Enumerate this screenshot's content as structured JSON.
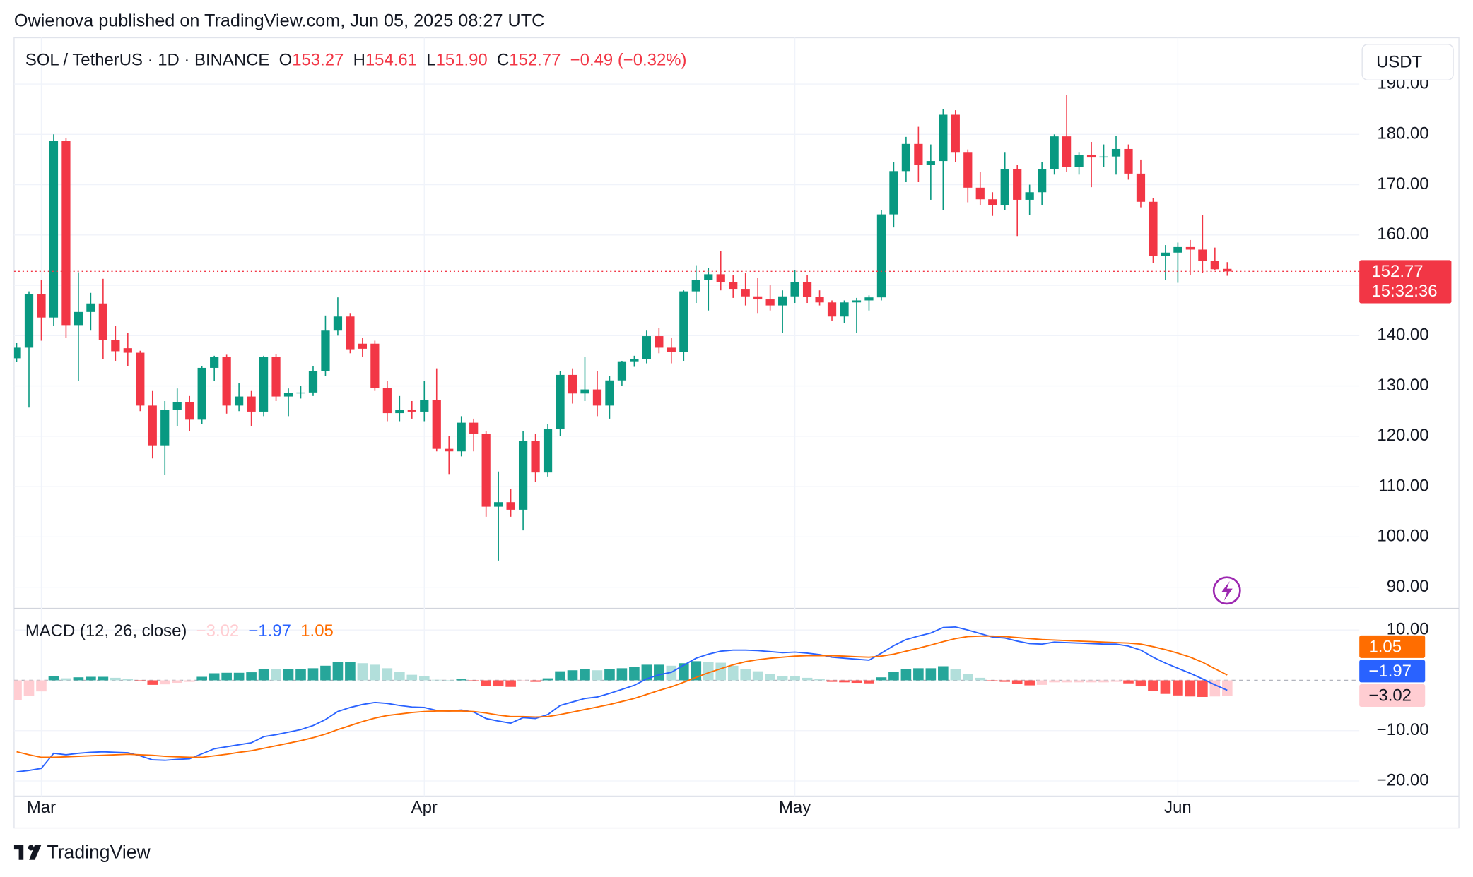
{
  "header": {
    "publisher": "Owienova published on TradingView.com, Jun 05, 2025 08:27 UTC"
  },
  "footer": {
    "brand": "TradingView"
  },
  "chart_data": [
    {
      "type": "candlestick",
      "title": "SOL / TetherUS · 1D · BINANCE",
      "currency": "USDT",
      "ohlc_legend": [
        {
          "key": "O",
          "value": "153.27"
        },
        {
          "key": "H",
          "value": "154.61"
        },
        {
          "key": "L",
          "value": "151.90"
        },
        {
          "key": "C",
          "value": "152.77"
        }
      ],
      "change": "−0.49 (−0.32%)",
      "last_price_label": "152.77",
      "countdown": "15:32:36",
      "up_color": "#089981",
      "down_color": "#f23645",
      "grid": true,
      "ylim": [
        85.8,
        199.2
      ],
      "yticks": [
        {
          "value": 90,
          "label": "90.00"
        },
        {
          "value": 100,
          "label": "100.00"
        },
        {
          "value": 110,
          "label": "110.00"
        },
        {
          "value": 120,
          "label": "120.00"
        },
        {
          "value": 130,
          "label": "130.00"
        },
        {
          "value": 140,
          "label": "140.00"
        },
        {
          "value": 150,
          "label": "150.00"
        },
        {
          "value": 160,
          "label": "160.00"
        },
        {
          "value": 170,
          "label": "170.00"
        },
        {
          "value": 180,
          "label": "180.00"
        },
        {
          "value": 190,
          "label": "190.00"
        }
      ],
      "categories": [
        null,
        null,
        "Mar",
        null,
        null,
        null,
        null,
        null,
        null,
        null,
        null,
        null,
        null,
        null,
        null,
        null,
        null,
        null,
        null,
        null,
        null,
        null,
        null,
        null,
        null,
        null,
        null,
        null,
        null,
        null,
        null,
        null,
        null,
        "Apr",
        null,
        null,
        null,
        null,
        null,
        null,
        null,
        null,
        null,
        null,
        null,
        null,
        null,
        null,
        null,
        null,
        null,
        null,
        null,
        null,
        null,
        null,
        null,
        null,
        null,
        null,
        null,
        null,
        null,
        "May",
        null,
        null,
        null,
        null,
        null,
        null,
        null,
        null,
        null,
        null,
        null,
        null,
        null,
        null,
        null,
        null,
        null,
        null,
        null,
        null,
        null,
        null,
        null,
        null,
        null,
        null,
        null,
        null,
        null,
        null,
        "Jun",
        null,
        null,
        null,
        null
      ],
      "open": [
        135.5,
        137.6,
        148.3,
        143.6,
        178.7,
        142.1,
        144.7,
        146.4,
        139.1,
        137.5,
        136.6,
        126.1,
        118.2,
        125.3,
        126.8,
        123.3,
        133.6,
        135.8,
        126.1,
        127.9,
        124.9,
        135.8,
        127.9,
        128.6,
        128.7,
        133.0,
        141.0,
        143.8,
        138.4,
        138.4,
        129.6,
        124.6,
        125.3,
        124.9,
        127.2,
        117.5,
        117.0,
        122.7,
        120.5,
        106.0,
        106.9,
        105.4,
        119.0,
        112.8,
        121.4,
        132.2,
        128.5,
        129.3,
        126.1,
        131.1,
        134.9,
        135.3,
        139.9,
        137.6,
        136.7,
        148.8,
        151.1,
        152.2,
        150.7,
        149.3,
        147.8,
        147.2,
        146.0,
        147.8,
        150.7,
        147.7,
        146.6,
        143.8,
        146.6,
        147.0,
        147.6,
        164.1,
        172.7,
        178.1,
        174.0,
        174.7,
        183.9,
        176.5,
        169.4,
        167.1,
        165.9,
        173.1,
        167.0,
        168.5,
        173.1,
        179.6,
        173.5,
        175.9,
        175.4,
        175.6,
        177.1,
        172.2,
        166.6,
        155.9,
        156.5,
        157.6,
        157.1,
        154.8,
        153.27
      ],
      "high": [
        138.5,
        148.8,
        151.0,
        180.0,
        179.3,
        152.6,
        148.5,
        151.3,
        142.0,
        140.5,
        137.0,
        129.0,
        127.0,
        129.5,
        128.0,
        134.0,
        136.0,
        136.2,
        130.5,
        129.0,
        136.0,
        136.3,
        129.5,
        130.0,
        134.0,
        144.0,
        147.6,
        144.5,
        139.5,
        139.0,
        131.0,
        128.0,
        127.0,
        131.0,
        133.5,
        120.0,
        124.0,
        123.5,
        121.0,
        113.0,
        109.5,
        121.0,
        120.5,
        122.5,
        133.0,
        133.5,
        135.8,
        133.0,
        132.0,
        135.0,
        136.0,
        141.0,
        141.5,
        139.5,
        149.0,
        154.0,
        153.5,
        156.8,
        152.0,
        152.5,
        151.5,
        150.0,
        149.0,
        153.0,
        152.0,
        149.0,
        147.0,
        147.0,
        147.5,
        148.0,
        165.0,
        174.5,
        179.5,
        181.5,
        178.0,
        185.0,
        184.8,
        177.0,
        172.5,
        168.5,
        176.5,
        174.0,
        170.0,
        174.5,
        180.0,
        187.8,
        176.5,
        178.5,
        178.0,
        179.7,
        178.0,
        175.0,
        167.3,
        158.0,
        158.5,
        159.0,
        164.0,
        157.5,
        154.61
      ],
      "low": [
        134.8,
        125.7,
        139.0,
        142.0,
        139.5,
        131.0,
        141.0,
        135.4,
        135.0,
        134.0,
        125.0,
        115.6,
        112.3,
        122.0,
        121.0,
        122.5,
        131.0,
        124.5,
        125.0,
        122.0,
        124.0,
        127.0,
        124.0,
        127.5,
        128.0,
        132.0,
        140.0,
        136.5,
        135.8,
        129.0,
        123.0,
        123.0,
        123.5,
        123.0,
        117.0,
        112.5,
        116.0,
        117.0,
        104.0,
        95.3,
        104.0,
        101.3,
        111.0,
        112.0,
        120.0,
        126.5,
        127.0,
        124.0,
        123.5,
        130.0,
        133.8,
        134.5,
        136.5,
        134.5,
        135.0,
        146.5,
        145.0,
        149.0,
        147.5,
        146.0,
        144.5,
        145.0,
        140.5,
        146.5,
        146.5,
        146.0,
        143.0,
        142.5,
        140.5,
        145.0,
        147.0,
        161.5,
        170.5,
        170.5,
        167.0,
        165.0,
        174.5,
        166.5,
        166.0,
        163.8,
        165.0,
        159.8,
        164.0,
        166.0,
        172.0,
        172.5,
        172.0,
        169.5,
        173.5,
        172.0,
        171.0,
        165.5,
        154.5,
        151.0,
        150.5,
        152.0,
        152.5,
        153.0,
        151.9
      ],
      "close": [
        137.6,
        148.3,
        143.6,
        178.7,
        142.1,
        144.7,
        146.4,
        139.1,
        136.9,
        136.6,
        126.1,
        118.2,
        125.3,
        126.8,
        123.3,
        133.6,
        135.8,
        126.1,
        127.9,
        124.9,
        135.8,
        127.9,
        128.6,
        128.7,
        133.0,
        141.0,
        143.8,
        137.3,
        137.4,
        129.6,
        124.6,
        125.3,
        124.9,
        127.2,
        117.5,
        117.0,
        122.7,
        120.5,
        106.0,
        106.9,
        105.4,
        119.0,
        112.8,
        121.4,
        132.2,
        128.5,
        129.3,
        126.1,
        131.1,
        134.9,
        135.3,
        139.9,
        137.6,
        136.7,
        148.8,
        151.1,
        152.2,
        150.7,
        149.3,
        147.8,
        147.2,
        146.0,
        147.8,
        150.7,
        147.7,
        146.6,
        143.8,
        146.6,
        147.0,
        147.6,
        164.1,
        172.7,
        178.1,
        174.0,
        174.7,
        183.9,
        176.5,
        169.4,
        167.1,
        165.9,
        173.1,
        167.0,
        168.5,
        173.1,
        179.6,
        173.5,
        175.9,
        175.4,
        175.6,
        177.1,
        172.2,
        166.6,
        155.9,
        156.5,
        157.6,
        157.1,
        154.8,
        153.2,
        152.77
      ]
    },
    {
      "type": "macd",
      "title": "MACD (12, 26, close)",
      "ylim": [
        -23.0,
        14.3
      ],
      "yticks": [
        {
          "value": -20,
          "label": "−20.00"
        },
        {
          "value": -10,
          "label": "−10.00"
        },
        {
          "value": 10,
          "label": "10.00"
        }
      ],
      "histogram_colors": [
        "#26a69a",
        "#b2dfdb",
        "#ff5252",
        "#ffcdd2"
      ],
      "histogram": {
        "color": "#ffcdd2",
        "current_label": "−3.02",
        "values": [
          -4.0,
          -3.1,
          -2.2,
          0.8,
          0.4,
          0.6,
          0.7,
          0.7,
          0.5,
          0.3,
          -0.2,
          -0.9,
          -0.8,
          -0.5,
          -0.3,
          0.7,
          1.4,
          1.5,
          1.5,
          1.6,
          2.3,
          2.2,
          2.2,
          2.2,
          2.4,
          2.9,
          3.6,
          3.6,
          3.4,
          3.1,
          2.4,
          1.7,
          1.1,
          0.8,
          0.1,
          0.0,
          0.2,
          -0.1,
          -1.1,
          -1.2,
          -1.3,
          -0.2,
          -0.3,
          0.4,
          1.8,
          2.0,
          2.2,
          2.0,
          2.2,
          2.4,
          2.6,
          3.1,
          3.1,
          2.9,
          3.4,
          3.8,
          3.7,
          3.5,
          2.9,
          2.3,
          1.8,
          1.3,
          0.9,
          0.8,
          0.5,
          0.2,
          -0.3,
          -0.4,
          -0.5,
          -0.6,
          0.6,
          1.7,
          2.3,
          2.4,
          2.4,
          2.8,
          2.3,
          1.3,
          0.5,
          -0.2,
          -0.3,
          -0.7,
          -1.0,
          -0.9,
          -0.4,
          -0.4,
          -0.4,
          -0.4,
          -0.4,
          -0.3,
          -0.6,
          -1.2,
          -2.1,
          -2.7,
          -3.0,
          -3.2,
          -3.3,
          -3.2,
          -3.02
        ]
      },
      "series": [
        {
          "color": "#2962ff",
          "current_label": "−1.97",
          "values": [
            -18.2,
            -17.9,
            -17.5,
            -14.5,
            -14.8,
            -14.5,
            -14.3,
            -14.2,
            -14.3,
            -14.4,
            -15.0,
            -15.8,
            -15.9,
            -15.7,
            -15.6,
            -14.6,
            -13.6,
            -13.2,
            -12.8,
            -12.4,
            -11.2,
            -10.8,
            -10.3,
            -9.8,
            -9.0,
            -7.8,
            -6.2,
            -5.4,
            -4.8,
            -4.4,
            -4.6,
            -5.0,
            -5.3,
            -5.4,
            -6.0,
            -6.1,
            -5.9,
            -6.3,
            -7.6,
            -8.1,
            -8.5,
            -7.4,
            -7.6,
            -6.8,
            -5.0,
            -4.3,
            -3.6,
            -3.3,
            -2.6,
            -1.8,
            -1.0,
            0.3,
            1.1,
            1.6,
            3.0,
            4.4,
            5.2,
            5.8,
            6.0,
            6.0,
            5.9,
            5.7,
            5.5,
            5.6,
            5.4,
            5.1,
            4.6,
            4.4,
            4.2,
            4.0,
            5.4,
            6.9,
            8.1,
            8.8,
            9.4,
            10.5,
            10.6,
            10.0,
            9.3,
            8.6,
            8.4,
            7.8,
            7.3,
            7.2,
            7.6,
            7.5,
            7.4,
            7.3,
            7.2,
            7.2,
            6.8,
            6.0,
            4.6,
            3.4,
            2.4,
            1.4,
            0.3,
            -0.9,
            -1.97
          ]
        },
        {
          "color": "#ff6d00",
          "current_label": "1.05",
          "values": [
            -14.2,
            -14.8,
            -15.3,
            -15.3,
            -15.2,
            -15.1,
            -15.0,
            -14.9,
            -14.8,
            -14.7,
            -14.8,
            -14.9,
            -15.1,
            -15.2,
            -15.3,
            -15.3,
            -15.0,
            -14.7,
            -14.3,
            -14.0,
            -13.5,
            -13.0,
            -12.5,
            -12.0,
            -11.4,
            -10.7,
            -9.8,
            -9.0,
            -8.2,
            -7.5,
            -7.0,
            -6.7,
            -6.4,
            -6.2,
            -6.1,
            -6.1,
            -6.1,
            -6.2,
            -6.5,
            -6.9,
            -7.2,
            -7.2,
            -7.3,
            -7.2,
            -6.8,
            -6.3,
            -5.8,
            -5.3,
            -4.8,
            -4.2,
            -3.6,
            -2.8,
            -2.0,
            -1.3,
            -0.4,
            0.6,
            1.5,
            2.3,
            3.1,
            3.7,
            4.1,
            4.4,
            4.6,
            4.8,
            4.9,
            4.9,
            4.9,
            4.8,
            4.7,
            4.6,
            4.8,
            5.2,
            5.8,
            6.4,
            7.0,
            7.7,
            8.3,
            8.7,
            8.8,
            8.8,
            8.7,
            8.5,
            8.3,
            8.1,
            8.0,
            7.9,
            7.8,
            7.7,
            7.6,
            7.5,
            7.4,
            7.2,
            6.7,
            6.1,
            5.4,
            4.6,
            3.6,
            2.3,
            1.05
          ]
        }
      ]
    }
  ]
}
